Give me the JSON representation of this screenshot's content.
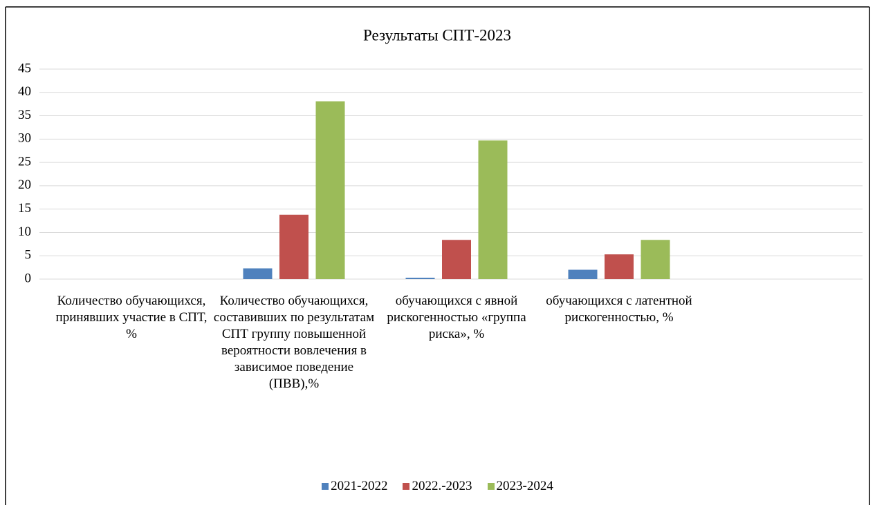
{
  "chart_data": {
    "type": "bar",
    "title": "Результаты СПТ-2023",
    "categories": [
      "Количество обучающихся, принявших участие  в СПТ, %",
      "Количество обучающихся, составивших по результатам СПТ группу повышенной вероятности вовлечения в зависимое поведение (ПВВ),%",
      "обучающихся с явной рискогенностью «группа риска», %",
      "обучающихся с латентной рискогенностью, %",
      null
    ],
    "series": [
      {
        "name": "2021-2022",
        "color": "#4f81bd",
        "values": [
          0,
          2.3,
          0.3,
          2.0,
          null
        ]
      },
      {
        "name": "2022.-2023",
        "color": "#c0504d",
        "values": [
          0,
          13.8,
          8.4,
          5.3,
          null
        ]
      },
      {
        "name": "2023-2024",
        "color": "#9bbb59",
        "values": [
          0,
          38.1,
          29.7,
          8.4,
          null
        ]
      }
    ],
    "ylim": [
      0,
      45
    ],
    "yticks": [
      0,
      5,
      10,
      15,
      20,
      25,
      30,
      35,
      40,
      45
    ],
    "grid": true,
    "legend": "bottom"
  }
}
